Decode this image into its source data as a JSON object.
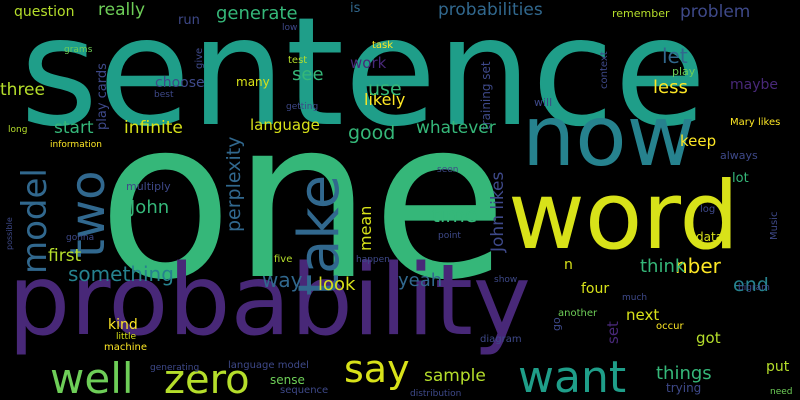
{
  "palette": {
    "background": "#000000",
    "colors": [
      "#fde725",
      "#b5de2b",
      "#6ece58",
      "#35b779",
      "#1f9e89",
      "#26828e",
      "#31688e",
      "#3e4989",
      "#482878",
      "#440154"
    ]
  },
  "words": [
    {
      "text": "sentence",
      "color": "#1f9e89"
    },
    {
      "text": "one",
      "color": "#35b779"
    },
    {
      "text": "probability",
      "color": "#482878"
    },
    {
      "text": "word",
      "color": "#d8e219"
    },
    {
      "text": "now",
      "color": "#26828e"
    },
    {
      "text": "well",
      "color": "#6ece58"
    },
    {
      "text": "zero",
      "color": "#b5de2b"
    },
    {
      "text": "want",
      "color": "#1f9e89"
    },
    {
      "text": "say",
      "color": "#d8e219"
    },
    {
      "text": "take",
      "color": "#31688e"
    },
    {
      "text": "two",
      "color": "#31688e"
    },
    {
      "text": "model",
      "color": "#31688e"
    },
    {
      "text": "question",
      "color": "#b5de2b"
    },
    {
      "text": "really",
      "color": "#6ece58"
    },
    {
      "text": "run",
      "color": "#3e4989"
    },
    {
      "text": "generate",
      "color": "#35b779"
    },
    {
      "text": "is",
      "color": "#31688e"
    },
    {
      "text": "probabilities",
      "color": "#31688e"
    },
    {
      "text": "problem",
      "color": "#3e4989"
    },
    {
      "text": "remember",
      "color": "#b5de2b"
    },
    {
      "text": "likely",
      "color": "#fde725"
    },
    {
      "text": "grams",
      "color": "#6ece58"
    },
    {
      "text": "give",
      "color": "#3e4989"
    },
    {
      "text": "low",
      "color": "#3e4989"
    },
    {
      "text": "task",
      "color": "#fde725"
    },
    {
      "text": "training set",
      "color": "#3e4989"
    },
    {
      "text": "context",
      "color": "#3e4989"
    },
    {
      "text": "play cards",
      "color": "#3e4989"
    },
    {
      "text": "test",
      "color": "#b5de2b"
    },
    {
      "text": "work",
      "color": "#482878"
    },
    {
      "text": "let",
      "color": "#31688e"
    },
    {
      "text": "play",
      "color": "#6ece58"
    },
    {
      "text": "see",
      "color": "#35b779"
    },
    {
      "text": "choose",
      "color": "#3e4989"
    },
    {
      "text": "many",
      "color": "#d8e219"
    },
    {
      "text": "use",
      "color": "#35b779"
    },
    {
      "text": "less",
      "color": "#fde725"
    },
    {
      "text": "maybe",
      "color": "#482878"
    },
    {
      "text": "three",
      "color": "#b5de2b"
    },
    {
      "text": "best",
      "color": "#3e4989"
    },
    {
      "text": "getting",
      "color": "#3e4989"
    },
    {
      "text": "will",
      "color": "#3e4989"
    },
    {
      "text": "long",
      "color": "#b5de2b"
    },
    {
      "text": "start",
      "color": "#35b779"
    },
    {
      "text": "infinite",
      "color": "#d8e219"
    },
    {
      "text": "language",
      "color": "#d8e219"
    },
    {
      "text": "good",
      "color": "#35b779"
    },
    {
      "text": "whatever",
      "color": "#35b779"
    },
    {
      "text": "keep",
      "color": "#fde725"
    },
    {
      "text": "Mary likes",
      "color": "#fde725"
    },
    {
      "text": "information",
      "color": "#fde725"
    },
    {
      "text": "always",
      "color": "#3e4989"
    },
    {
      "text": "multiply",
      "color": "#3e4989"
    },
    {
      "text": "John",
      "color": "#35b779"
    },
    {
      "text": "perplexity",
      "color": "#31688e"
    },
    {
      "text": "seen",
      "color": "#3e4989"
    },
    {
      "text": "time",
      "color": "#35b779"
    },
    {
      "text": "lot",
      "color": "#35b779"
    },
    {
      "text": "gonna",
      "color": "#3e4989"
    },
    {
      "text": "mean",
      "color": "#d8e219"
    },
    {
      "text": "log",
      "color": "#3e4989"
    },
    {
      "text": "possible",
      "color": "#3e4989"
    },
    {
      "text": "first",
      "color": "#b5de2b"
    },
    {
      "text": "point",
      "color": "#3e4989"
    },
    {
      "text": "data",
      "color": "#d8e219"
    },
    {
      "text": "Music",
      "color": "#3e4989"
    },
    {
      "text": "five",
      "color": "#b5de2b"
    },
    {
      "text": "happen",
      "color": "#3e4989"
    },
    {
      "text": "John likes",
      "color": "#3e4989"
    },
    {
      "text": "n",
      "color": "#d8e219"
    },
    {
      "text": "nber",
      "color": "#fde725"
    },
    {
      "text": "something",
      "color": "#26828e"
    },
    {
      "text": "think",
      "color": "#35b779"
    },
    {
      "text": "end",
      "color": "#26828e"
    },
    {
      "text": "way",
      "color": "#31688e"
    },
    {
      "text": "yeah",
      "color": "#31688e"
    },
    {
      "text": "look",
      "color": "#d8e219"
    },
    {
      "text": "show",
      "color": "#3e4989"
    },
    {
      "text": "four",
      "color": "#d8e219"
    },
    {
      "text": "bigram",
      "color": "#3e4989"
    },
    {
      "text": "much",
      "color": "#3e4989"
    },
    {
      "text": "go",
      "color": "#3e4989"
    },
    {
      "text": "another",
      "color": "#6ece58"
    },
    {
      "text": "next",
      "color": "#d8e219"
    },
    {
      "text": "set",
      "color": "#482878"
    },
    {
      "text": "kind",
      "color": "#fde725"
    },
    {
      "text": "little",
      "color": "#d8e219"
    },
    {
      "text": "machine",
      "color": "#fde725"
    },
    {
      "text": "diagram",
      "color": "#3e4989"
    },
    {
      "text": "occur",
      "color": "#fde725"
    },
    {
      "text": "got",
      "color": "#b5de2b"
    },
    {
      "text": "generating",
      "color": "#3e4989"
    },
    {
      "text": "language model",
      "color": "#3e4989"
    },
    {
      "text": "sample",
      "color": "#b5de2b"
    },
    {
      "text": "sense",
      "color": "#6ece58"
    },
    {
      "text": "sequence",
      "color": "#3e4989"
    },
    {
      "text": "things",
      "color": "#35b779"
    },
    {
      "text": "distribution",
      "color": "#3e4989"
    },
    {
      "text": "trying",
      "color": "#3e4989"
    },
    {
      "text": "put",
      "color": "#b5de2b"
    },
    {
      "text": "need",
      "color": "#6ece58"
    }
  ]
}
